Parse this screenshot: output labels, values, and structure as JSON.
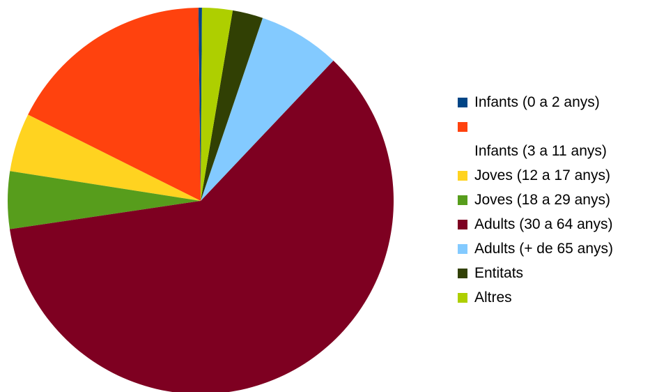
{
  "chart_data": {
    "type": "pie",
    "title": "",
    "start_angle_deg": 0,
    "direction": "clockwise",
    "legend_position": "right",
    "slices": [
      {
        "label": "Infants (0 a 2 anys)",
        "value": 0.3,
        "color": "#004586"
      },
      {
        "label": "Infants (3 a 11 anys)",
        "value": 17.8,
        "color": "#ff420e",
        "legend_wrap": true
      },
      {
        "label": "Joves (12 a 17 anys)",
        "value": 5.0,
        "color": "#ffd320"
      },
      {
        "label": "Joves (18 a 29 anys)",
        "value": 4.9,
        "color": "#579d1c"
      },
      {
        "label": "Adults (30 a 64 anys)",
        "value": 61.8,
        "color": "#7e0021"
      },
      {
        "label": "Adults (+ de 65 anys)",
        "value": 7.0,
        "color": "#83caff"
      },
      {
        "label": "Entitats",
        "value": 2.6,
        "color": "#314004"
      },
      {
        "label": "Altres",
        "value": 2.6,
        "color": "#aecf00"
      }
    ]
  }
}
